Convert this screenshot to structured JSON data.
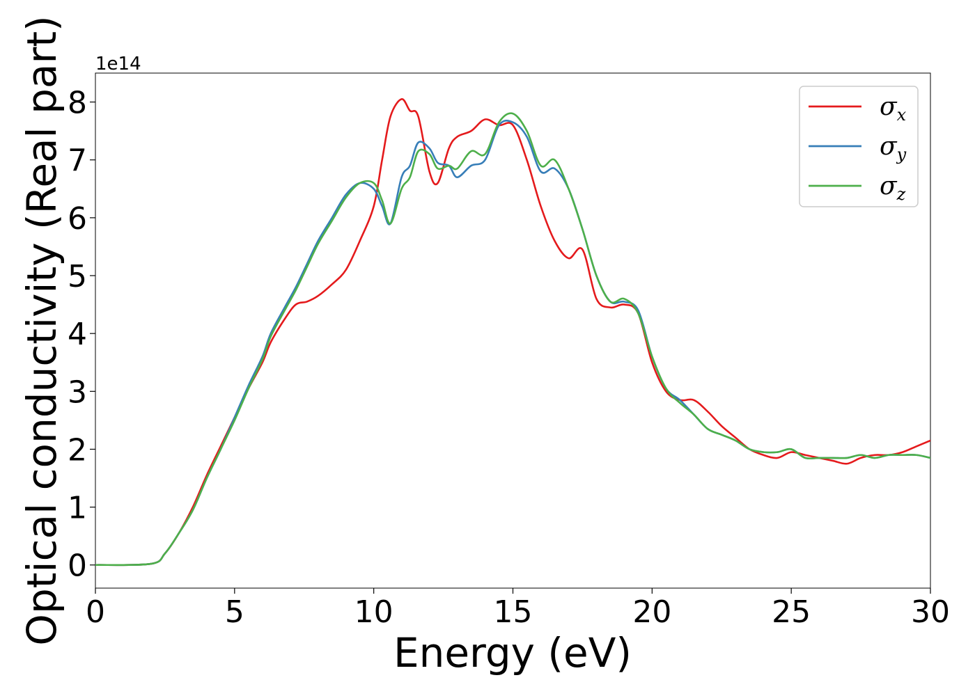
{
  "chart_data": {
    "type": "line",
    "xlabel": "Energy (eV)",
    "ylabel": "Optical conductivity (Real part)",
    "y_offset_label": "1e14",
    "xlim": [
      0,
      30
    ],
    "ylim": [
      -0.4,
      8.5
    ],
    "x_ticks": [
      0,
      5,
      10,
      15,
      20,
      25,
      30
    ],
    "y_ticks": [
      0,
      1,
      2,
      3,
      4,
      5,
      6,
      7,
      8
    ],
    "x_tick_labels": [
      "0",
      "5",
      "10",
      "15",
      "20",
      "25",
      "30"
    ],
    "y_tick_labels": [
      "0",
      "1",
      "2",
      "3",
      "4",
      "5",
      "6",
      "7",
      "8"
    ],
    "grid": false,
    "legend_position": "top-right",
    "series": [
      {
        "name": "σ",
        "subscript": "x",
        "color": "#e41a1c",
        "x": [
          0,
          2,
          2.5,
          3,
          3.5,
          4,
          4.5,
          5,
          5.5,
          6,
          6.3,
          6.8,
          7.2,
          7.6,
          8,
          8.5,
          9,
          9.5,
          10,
          10.3,
          10.6,
          11,
          11.3,
          11.6,
          12,
          12.3,
          12.7,
          13,
          13.5,
          14,
          14.5,
          15,
          15.5,
          16,
          16.5,
          17,
          17.5,
          18,
          18.5,
          19,
          19.5,
          20,
          20.5,
          21,
          21.5,
          22,
          22.5,
          23,
          23.5,
          24,
          24.5,
          25,
          25.5,
          26,
          26.5,
          27,
          27.5,
          28,
          28.5,
          29,
          29.5,
          30
        ],
        "y": [
          0,
          0.02,
          0.2,
          0.55,
          1.0,
          1.55,
          2.05,
          2.55,
          3.05,
          3.5,
          3.85,
          4.25,
          4.5,
          4.55,
          4.65,
          4.85,
          5.1,
          5.6,
          6.2,
          7.0,
          7.75,
          8.05,
          7.85,
          7.75,
          6.8,
          6.6,
          7.2,
          7.4,
          7.5,
          7.7,
          7.6,
          7.6,
          7.0,
          6.2,
          5.6,
          5.3,
          5.45,
          4.6,
          4.45,
          4.5,
          4.35,
          3.5,
          3.0,
          2.85,
          2.85,
          2.65,
          2.4,
          2.2,
          2.0,
          1.9,
          1.85,
          1.95,
          1.9,
          1.85,
          1.8,
          1.75,
          1.85,
          1.9,
          1.9,
          1.95,
          2.05,
          2.15
        ]
      },
      {
        "name": "σ",
        "subscript": "y",
        "color": "#377eb8",
        "x": [
          0,
          2,
          2.5,
          3,
          3.5,
          4,
          4.5,
          5,
          5.5,
          6,
          6.3,
          6.8,
          7.2,
          7.6,
          8,
          8.5,
          9,
          9.5,
          10,
          10.3,
          10.6,
          11,
          11.3,
          11.6,
          12,
          12.3,
          12.7,
          13,
          13.5,
          14,
          14.5,
          15,
          15.5,
          16,
          16.5,
          17,
          17.5,
          18,
          18.5,
          19,
          19.5,
          20,
          20.5,
          21,
          21.5,
          22,
          22.5,
          23,
          23.5,
          24,
          24.5,
          25,
          25.5,
          26,
          26.5,
          27,
          27.5,
          28,
          28.5,
          29,
          29.5,
          30
        ],
        "y": [
          0,
          0.02,
          0.2,
          0.55,
          0.95,
          1.5,
          2.0,
          2.55,
          3.1,
          3.6,
          4.0,
          4.45,
          4.8,
          5.2,
          5.6,
          6.0,
          6.4,
          6.6,
          6.5,
          6.2,
          5.9,
          6.7,
          6.9,
          7.3,
          7.2,
          6.95,
          6.9,
          6.7,
          6.9,
          7.0,
          7.6,
          7.65,
          7.4,
          6.8,
          6.85,
          6.5,
          5.8,
          5.0,
          4.55,
          4.55,
          4.4,
          3.6,
          3.05,
          2.85,
          2.6,
          2.35,
          2.25,
          2.15,
          2.0,
          1.95,
          1.95,
          2.0,
          1.85,
          1.85,
          1.85,
          1.85,
          1.9,
          1.85,
          1.9,
          1.9,
          1.9,
          1.85
        ]
      },
      {
        "name": "σ",
        "subscript": "z",
        "color": "#4daf4a",
        "x": [
          0,
          2,
          2.5,
          3,
          3.5,
          4,
          4.5,
          5,
          5.5,
          6,
          6.3,
          6.8,
          7.2,
          7.6,
          8,
          8.5,
          9,
          9.5,
          10,
          10.3,
          10.6,
          11,
          11.3,
          11.6,
          12,
          12.3,
          12.7,
          13,
          13.5,
          14,
          14.5,
          15,
          15.5,
          16,
          16.5,
          17,
          17.5,
          18,
          18.5,
          19,
          19.5,
          20,
          20.5,
          21,
          21.5,
          22,
          22.5,
          23,
          23.5,
          24,
          24.5,
          25,
          25.5,
          26,
          26.5,
          27,
          27.5,
          28,
          28.5,
          29,
          29.5,
          30
        ],
        "y": [
          0,
          0.02,
          0.2,
          0.55,
          0.95,
          1.5,
          2.0,
          2.5,
          3.05,
          3.55,
          3.95,
          4.4,
          4.75,
          5.15,
          5.55,
          5.95,
          6.35,
          6.6,
          6.6,
          6.3,
          5.9,
          6.5,
          6.7,
          7.15,
          7.1,
          6.85,
          6.9,
          6.85,
          7.15,
          7.1,
          7.65,
          7.8,
          7.5,
          6.9,
          7.0,
          6.5,
          5.8,
          5.0,
          4.55,
          4.6,
          4.35,
          3.6,
          3.05,
          2.8,
          2.6,
          2.35,
          2.25,
          2.15,
          2.0,
          1.95,
          1.95,
          2.0,
          1.85,
          1.85,
          1.85,
          1.85,
          1.9,
          1.85,
          1.9,
          1.9,
          1.9,
          1.85
        ]
      }
    ]
  }
}
